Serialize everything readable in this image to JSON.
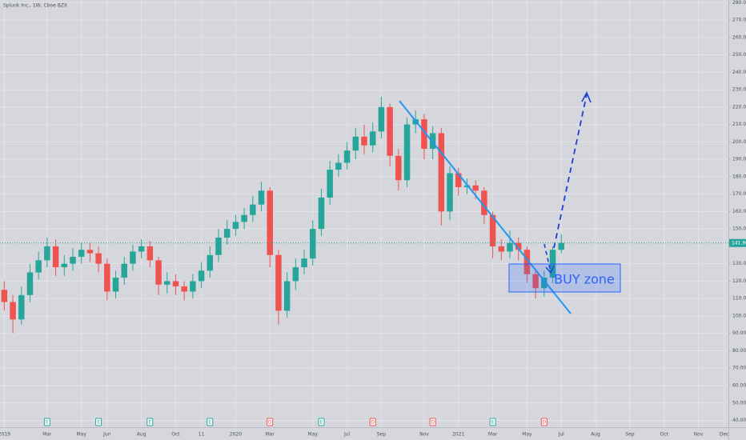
{
  "chart_data": {
    "type": "candlestick",
    "title": "Splunk Inc., 1W, Cboe BZX",
    "up_color": "#26a69a",
    "down_color": "#ef5350",
    "grid": true,
    "categories": [
      "2019",
      null,
      null,
      null,
      null,
      "Mar",
      null,
      null,
      null,
      "May",
      null,
      null,
      "Jun",
      null,
      null,
      null,
      "Aug",
      null,
      null,
      null,
      "Oct",
      null,
      null,
      "11",
      null,
      null,
      null,
      "2020",
      null,
      null,
      null,
      "Mar",
      null,
      null,
      null,
      null,
      "May",
      null,
      null,
      null,
      "Jul",
      null,
      null,
      null,
      "Sep",
      null,
      null,
      null,
      null,
      "Nov",
      null,
      null,
      null,
      "2021",
      null,
      null,
      null,
      "Mar",
      null,
      null,
      null,
      "May",
      null,
      null,
      null,
      "Jul",
      null,
      null,
      null,
      "Aug",
      null,
      null,
      null,
      "Sep",
      null,
      null,
      null,
      "Oct",
      null,
      null,
      null,
      "Nov",
      null,
      null,
      "Dec"
    ],
    "open": [
      115,
      108,
      98,
      112,
      125,
      132,
      140,
      128,
      130,
      134,
      138,
      136,
      130,
      114,
      122,
      130,
      137,
      140,
      132,
      118,
      120,
      117,
      114,
      120,
      126,
      135,
      145,
      150,
      154,
      158,
      164,
      172,
      135,
      103,
      120,
      128,
      133,
      150,
      168,
      184,
      188,
      195,
      203,
      198,
      206,
      220,
      192,
      178,
      210,
      213,
      196,
      205,
      160,
      182,
      174,
      175,
      172,
      158,
      140,
      137,
      142,
      138,
      124,
      116,
      122,
      138,
      null,
      null,
      null,
      null,
      null,
      null,
      null,
      null,
      null,
      null,
      null,
      null,
      null,
      null,
      null,
      null,
      null,
      null,
      null
    ],
    "high": [
      120,
      112,
      117,
      130,
      137,
      145,
      144,
      135,
      139,
      142,
      142,
      140,
      133,
      126,
      134,
      141,
      144,
      143,
      134,
      125,
      124,
      120,
      124,
      131,
      140,
      150,
      155,
      158,
      162,
      169,
      177,
      174,
      138,
      125,
      133,
      138,
      155,
      173,
      189,
      193,
      200,
      208,
      210,
      211,
      226,
      222,
      196,
      214,
      218,
      216,
      209,
      208,
      186,
      185,
      179,
      178,
      174,
      160,
      144,
      149,
      145,
      140,
      127,
      126,
      140,
      147,
      null,
      null,
      null,
      null,
      null,
      null,
      null,
      null,
      null,
      null,
      null,
      null,
      null,
      null,
      null,
      null,
      null,
      null,
      null
    ],
    "low": [
      103,
      90,
      95,
      108,
      121,
      128,
      123,
      123,
      126,
      130,
      131,
      125,
      109,
      110,
      118,
      126,
      133,
      128,
      112,
      113,
      112,
      109,
      110,
      116,
      122,
      131,
      141,
      146,
      150,
      154,
      160,
      128,
      95,
      99,
      115,
      124,
      129,
      146,
      164,
      180,
      184,
      190,
      193,
      194,
      202,
      186,
      172,
      174,
      205,
      190,
      190,
      152,
      155,
      169,
      170,
      167,
      153,
      133,
      132,
      133,
      132,
      119,
      110,
      111,
      119,
      136,
      null,
      null,
      null,
      null,
      null,
      null,
      null,
      null,
      null,
      null,
      null,
      null,
      null,
      null,
      null,
      null,
      null,
      null,
      null
    ],
    "close": [
      108,
      98,
      112,
      125,
      132,
      140,
      128,
      130,
      134,
      138,
      136,
      130,
      114,
      122,
      130,
      137,
      140,
      132,
      118,
      120,
      117,
      114,
      120,
      126,
      135,
      145,
      150,
      154,
      158,
      164,
      172,
      135,
      103,
      120,
      128,
      133,
      150,
      168,
      184,
      188,
      195,
      203,
      198,
      206,
      220,
      192,
      178,
      210,
      213,
      196,
      205,
      160,
      182,
      174,
      175,
      172,
      158,
      140,
      137,
      142,
      138,
      124,
      116,
      122,
      138,
      141.9,
      null,
      null,
      null,
      null,
      null,
      null,
      null,
      null,
      null,
      null,
      null,
      null,
      null,
      null,
      null,
      null,
      null,
      null,
      null
    ],
    "last_price": {
      "value": 141.9,
      "label": "141.90"
    },
    "ylim": [
      36.1,
      281.5
    ],
    "yticks": [
      {
        "value": 40,
        "label": "40.00"
      },
      {
        "value": 50,
        "label": "50.00"
      },
      {
        "value": 60,
        "label": "60.00"
      },
      {
        "value": 70,
        "label": "70.00"
      },
      {
        "value": 80,
        "label": "80.00"
      },
      {
        "value": 90,
        "label": "90.00"
      },
      {
        "value": 100,
        "label": "100.00"
      },
      {
        "value": 110,
        "label": "110.00"
      },
      {
        "value": 120,
        "label": "120.00"
      },
      {
        "value": 130,
        "label": "130.00"
      },
      {
        "value": 150,
        "label": "150.00"
      },
      {
        "value": 160,
        "label": "160.00"
      },
      {
        "value": 170,
        "label": "170.00"
      },
      {
        "value": 180,
        "label": "180.00"
      },
      {
        "value": 190,
        "label": "190.00"
      },
      {
        "value": 200,
        "label": "200.00"
      },
      {
        "value": 210,
        "label": "210.00"
      },
      {
        "value": 220,
        "label": "220.00"
      },
      {
        "value": 230,
        "label": "230.00"
      },
      {
        "value": 240,
        "label": "240.00"
      },
      {
        "value": 250,
        "label": "250.00"
      },
      {
        "value": 260,
        "label": "260.00"
      },
      {
        "value": 270,
        "label": "270.00"
      },
      {
        "value": 280,
        "label": "280.00"
      }
    ],
    "annotation": "BUY zone",
    "events": [
      {
        "index": 5,
        "label": "E",
        "color": "#26a69a"
      },
      {
        "index": 11,
        "label": "E",
        "color": "#26a69a"
      },
      {
        "index": 17,
        "label": "E",
        "color": "#26a69a"
      },
      {
        "index": 24,
        "label": "E",
        "color": "#26a69a"
      },
      {
        "index": 31,
        "label": "D",
        "color": "#ef5350"
      },
      {
        "index": 37,
        "label": "E",
        "color": "#26a69a"
      },
      {
        "index": 43,
        "label": "D",
        "color": "#ef5350"
      },
      {
        "index": 50,
        "label": "D",
        "color": "#ef5350"
      },
      {
        "index": 57,
        "label": "E",
        "color": "#26a69a"
      },
      {
        "index": 63,
        "label": "D",
        "color": "#ef5350"
      }
    ]
  }
}
